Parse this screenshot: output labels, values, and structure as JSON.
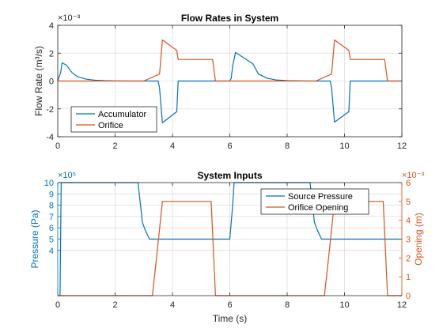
{
  "chart_data": [
    {
      "type": "line",
      "title": "Flow Rates in System",
      "xlabel": "",
      "ylabel": "Flow Rate (m³/s)",
      "xlim": [
        0,
        12
      ],
      "ylim": [
        -4,
        4
      ],
      "xticks": [
        "0",
        "2",
        "4",
        "6",
        "8",
        "10",
        "12"
      ],
      "yticks": [
        "-4",
        "-2",
        "0",
        "2",
        "4"
      ],
      "exponent_label": "×10⁻³",
      "grid": true,
      "legend_position": "bottom-left",
      "series": [
        {
          "name": "Accumulator",
          "color": "#0072BD",
          "x": [
            0,
            0.1,
            0.15,
            0.3,
            0.5,
            0.7,
            1.0,
            1.3,
            1.6,
            2.0,
            2.5,
            3.0,
            3.5,
            3.55,
            3.65,
            4.15,
            4.2,
            5.0,
            6.0,
            6.05,
            6.1,
            6.2,
            6.8,
            7.0,
            7.3,
            7.6,
            8.0,
            8.5,
            9.0,
            9.5,
            9.55,
            9.65,
            10.15,
            10.2,
            11.0,
            12.0
          ],
          "y": [
            0,
            0.6,
            1.3,
            1.15,
            0.6,
            0.3,
            0.13,
            0.06,
            0.03,
            0.01,
            0,
            0,
            0,
            -0.5,
            -3.0,
            -2.2,
            0,
            0,
            0,
            0.2,
            1.1,
            2.05,
            1.25,
            0.5,
            0.2,
            0.08,
            0.03,
            0.01,
            0,
            0,
            -0.5,
            -2.95,
            -2.2,
            0,
            0,
            0
          ]
        },
        {
          "name": "Orifice",
          "color": "#D95319",
          "x": [
            0,
            1.0,
            2.0,
            3.0,
            3.55,
            3.65,
            4.15,
            4.2,
            5.0,
            5.4,
            5.5,
            6.0,
            7.0,
            8.0,
            9.0,
            9.55,
            9.65,
            10.15,
            10.2,
            11.0,
            11.4,
            11.5,
            12.0
          ],
          "y": [
            0,
            0,
            0,
            0,
            0.5,
            2.95,
            2.2,
            1.55,
            1.55,
            1.55,
            0,
            0,
            0,
            0,
            0,
            0.5,
            2.95,
            2.2,
            1.55,
            1.55,
            1.55,
            0,
            0
          ]
        }
      ]
    },
    {
      "type": "line",
      "title": "System Inputs",
      "xlabel": "Time (s)",
      "ylabel_left": "Pressure (Pa)",
      "ylabel_right": "Opening (m)",
      "xlim": [
        0,
        12
      ],
      "ylim_left": [
        0,
        10
      ],
      "ylim_right": [
        0,
        6
      ],
      "xticks": [
        "0",
        "2",
        "4",
        "6",
        "8",
        "10",
        "12"
      ],
      "yticks_left": [
        "4",
        "5",
        "6",
        "7",
        "8",
        "9",
        "10"
      ],
      "yticks_right": [
        "0",
        "1",
        "2",
        "3",
        "4",
        "5",
        "6"
      ],
      "exponent_left": "×10⁵",
      "exponent_right": "×10⁻³",
      "grid": true,
      "legend_position": "top-right",
      "series": [
        {
          "name": "Source Pressure",
          "axis": "left",
          "color": "#0072BD",
          "x": [
            0,
            0.08,
            0.12,
            2.8,
            2.95,
            3.05,
            3.2,
            5.5,
            6.0,
            6.1,
            6.15,
            8.8,
            8.95,
            9.05,
            9.2,
            11.5,
            12.0
          ],
          "y": [
            0,
            0,
            10,
            10,
            6.5,
            5.8,
            5.0,
            5.0,
            5.0,
            8.0,
            10,
            10,
            6.5,
            5.8,
            5.0,
            5.0,
            5.0
          ]
        },
        {
          "name": "Orifice Opening",
          "axis": "right",
          "color": "#D95319",
          "x": [
            0,
            3.3,
            3.5,
            3.65,
            5.35,
            5.5,
            9.3,
            9.5,
            9.65,
            11.35,
            11.5,
            12.0
          ],
          "y": [
            0,
            0,
            2.8,
            5.0,
            5.0,
            0,
            0,
            2.8,
            5.0,
            5.0,
            0,
            0
          ]
        }
      ]
    }
  ]
}
